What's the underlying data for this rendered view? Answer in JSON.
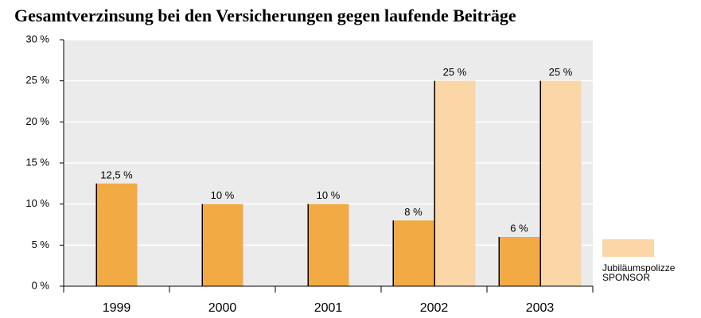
{
  "chart_data": {
    "type": "bar",
    "title": "Gesamtverzinsung bei den Versicherungen gegen laufende Beiträge",
    "categories": [
      "1999",
      "2000",
      "2001",
      "2002",
      "2003"
    ],
    "series": [
      {
        "color": "#f2aa45",
        "values": [
          12.5,
          10,
          10,
          8,
          6
        ],
        "value_labels": [
          "12,5 %",
          "10 %",
          "10 %",
          "8 %",
          "6 %"
        ]
      },
      {
        "name": "Jubiläumspolizze SPONSOR",
        "color": "#fbd6a6",
        "values": [
          null,
          null,
          null,
          25,
          25
        ],
        "value_labels": [
          null,
          null,
          null,
          "25 %",
          "25 %"
        ]
      }
    ],
    "ylim": [
      0,
      30
    ],
    "yticks": [
      {
        "value": 0,
        "label": "0 %"
      },
      {
        "value": 5,
        "label": "5 %"
      },
      {
        "value": 10,
        "label": "10 %"
      },
      {
        "value": 15,
        "label": "15 %"
      },
      {
        "value": 20,
        "label": "20 %"
      },
      {
        "value": 25,
        "label": "25 %"
      },
      {
        "value": 30,
        "label": "30 %"
      }
    ],
    "grid": true
  }
}
